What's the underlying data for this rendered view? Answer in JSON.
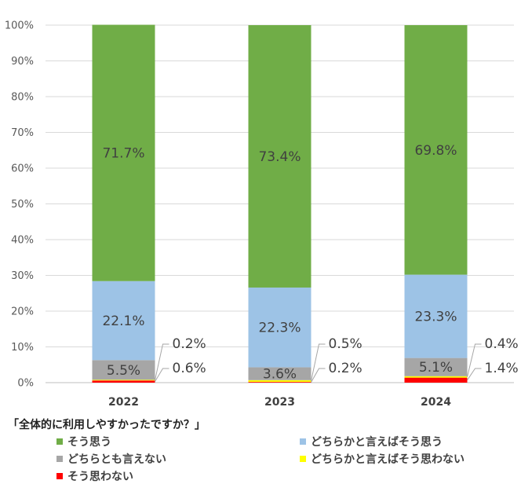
{
  "chart_data": {
    "type": "bar",
    "stacked": true,
    "categories": [
      "2022",
      "2023",
      "2024"
    ],
    "ylim": [
      0,
      100
    ],
    "yticks": [
      "0%",
      "10%",
      "20%",
      "30%",
      "40%",
      "50%",
      "60%",
      "70%",
      "80%",
      "90%",
      "100%"
    ],
    "grid": true,
    "legend_title": "「全体的に利用しやすかったですか？」",
    "legend_placement": "bottom",
    "series": [
      {
        "name": "そう思わない",
        "color": "#ff0000",
        "values": [
          0.6,
          0.2,
          1.4
        ],
        "labels": [
          "0.6%",
          "0.2%",
          "1.4%"
        ]
      },
      {
        "name": "どちらかと言えばそう思わない",
        "color": "#ffff00",
        "values": [
          0.2,
          0.5,
          0.4
        ],
        "labels": [
          "0.2%",
          "0.5%",
          "0.4%"
        ]
      },
      {
        "name": "どちらとも言えない",
        "color": "#a6a6a6",
        "values": [
          5.5,
          3.6,
          5.1
        ],
        "labels": [
          "5.5%",
          "3.6%",
          "5.1%"
        ]
      },
      {
        "name": "どちらかと言えばそう思う",
        "color": "#9dc3e6",
        "values": [
          22.1,
          22.3,
          23.3
        ],
        "labels": [
          "22.1%",
          "22.3%",
          "23.3%"
        ]
      },
      {
        "name": "そう思う",
        "color": "#70ad47",
        "values": [
          71.7,
          73.4,
          69.8
        ],
        "labels": [
          "71.7%",
          "73.4%",
          "69.8%"
        ]
      }
    ]
  },
  "legend": {
    "title": "「全体的に利用しやすかったですか？」",
    "items": [
      {
        "label": "そう思う",
        "color": "#70ad47"
      },
      {
        "label": "どちらかと言えばそう思う",
        "color": "#9dc3e6"
      },
      {
        "label": "どちらとも言えない",
        "color": "#a6a6a6"
      },
      {
        "label": "どちらかと言えばそう思わない",
        "color": "#ffff00"
      },
      {
        "label": "そう思わない",
        "color": "#ff0000"
      }
    ]
  }
}
